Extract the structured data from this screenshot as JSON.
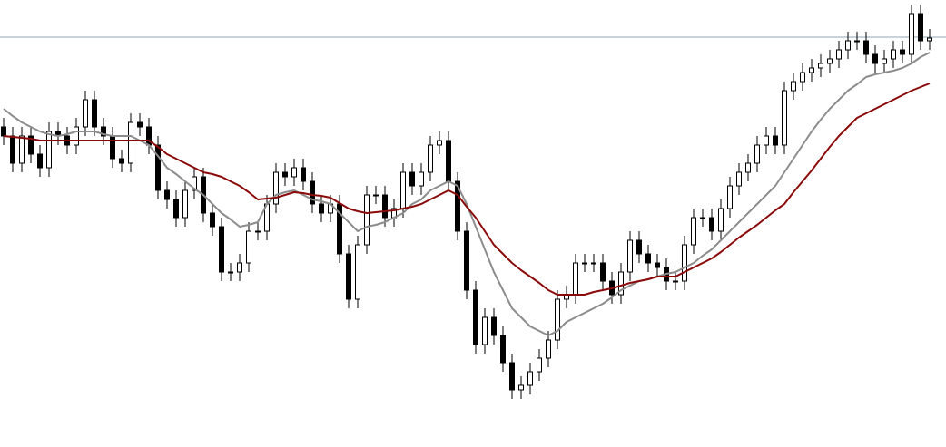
{
  "chart_data": {
    "type": "candlestick",
    "ylim": [
      0,
      493
    ],
    "up_color": "#ffffff",
    "down_color": "#000000",
    "wick_color": "#000000",
    "reference_line": {
      "value": 452,
      "color": "#8fa7b0"
    },
    "open": [
      353,
      343,
      313,
      343,
      323,
      308,
      348,
      343,
      333,
      353,
      383,
      353,
      343,
      318,
      313,
      358,
      353,
      333,
      283,
      273,
      253,
      283,
      298,
      258,
      243,
      193,
      193,
      203,
      238,
      238,
      268,
      303,
      298,
      308,
      293,
      268,
      258,
      268,
      213,
      163,
      223,
      278,
      278,
      253,
      263,
      303,
      288,
      303,
      333,
      338,
      293,
      238,
      173,
      113,
      143,
      123,
      93,
      63,
      68,
      83,
      98,
      118,
      163,
      168,
      203,
      203,
      203,
      183,
      168,
      193,
      228,
      213,
      203,
      198,
      183,
      183,
      223,
      253,
      253,
      238,
      263,
      288,
      303,
      313,
      333,
      343,
      333,
      393,
      403,
      413,
      418,
      423,
      428,
      438,
      448,
      448,
      433,
      423,
      428,
      438,
      433,
      478,
      448
    ],
    "high": [
      363,
      353,
      353,
      353,
      333,
      358,
      358,
      353,
      363,
      393,
      393,
      363,
      353,
      328,
      368,
      368,
      363,
      343,
      293,
      283,
      293,
      308,
      308,
      268,
      253,
      203,
      213,
      248,
      248,
      278,
      313,
      313,
      318,
      318,
      303,
      278,
      278,
      278,
      223,
      233,
      288,
      288,
      288,
      273,
      313,
      313,
      313,
      343,
      348,
      348,
      303,
      248,
      183,
      153,
      153,
      133,
      103,
      78,
      93,
      108,
      128,
      173,
      178,
      213,
      213,
      213,
      213,
      193,
      203,
      238,
      238,
      223,
      213,
      208,
      193,
      233,
      263,
      263,
      263,
      273,
      298,
      313,
      323,
      343,
      353,
      353,
      403,
      413,
      423,
      428,
      433,
      438,
      448,
      458,
      458,
      458,
      443,
      438,
      448,
      448,
      488,
      488,
      461
    ],
    "low": [
      333,
      303,
      303,
      313,
      298,
      298,
      333,
      323,
      323,
      343,
      343,
      333,
      308,
      303,
      303,
      343,
      323,
      273,
      263,
      243,
      243,
      273,
      248,
      233,
      183,
      183,
      183,
      193,
      228,
      228,
      258,
      288,
      288,
      283,
      258,
      248,
      248,
      203,
      153,
      153,
      213,
      268,
      243,
      243,
      253,
      278,
      278,
      293,
      323,
      283,
      228,
      163,
      103,
      103,
      113,
      83,
      53,
      53,
      58,
      73,
      88,
      108,
      153,
      158,
      193,
      193,
      173,
      158,
      158,
      183,
      203,
      193,
      188,
      173,
      173,
      173,
      213,
      243,
      228,
      228,
      253,
      278,
      293,
      303,
      323,
      323,
      323,
      383,
      393,
      403,
      408,
      413,
      418,
      428,
      438,
      423,
      413,
      413,
      418,
      423,
      423,
      438,
      438
    ],
    "close": [
      343,
      313,
      343,
      323,
      308,
      348,
      343,
      333,
      353,
      383,
      353,
      343,
      318,
      313,
      358,
      353,
      333,
      283,
      273,
      253,
      283,
      298,
      258,
      243,
      193,
      193,
      203,
      238,
      238,
      268,
      303,
      298,
      308,
      293,
      268,
      258,
      268,
      213,
      163,
      223,
      278,
      278,
      253,
      263,
      303,
      288,
      303,
      333,
      338,
      293,
      238,
      173,
      113,
      143,
      123,
      93,
      63,
      68,
      83,
      98,
      118,
      163,
      168,
      203,
      203,
      203,
      183,
      168,
      193,
      228,
      213,
      203,
      198,
      183,
      183,
      223,
      253,
      253,
      238,
      263,
      288,
      303,
      313,
      333,
      343,
      333,
      393,
      403,
      413,
      418,
      423,
      428,
      438,
      448,
      448,
      433,
      423,
      428,
      438,
      433,
      478,
      448,
      451
    ],
    "series": [
      {
        "color": "#8c8c8c",
        "values": [
          373,
          365,
          358,
          353,
          348,
          345,
          343,
          345,
          348,
          348,
          348,
          345,
          343,
          343,
          343,
          338,
          333,
          321,
          308,
          301,
          293,
          285,
          278,
          268,
          258,
          251,
          243,
          245,
          248,
          268,
          278,
          281,
          283,
          278,
          273,
          271,
          268,
          258,
          248,
          238,
          243,
          245,
          248,
          253,
          258,
          268,
          273,
          283,
          288,
          293,
          288,
          268,
          243,
          218,
          193,
          173,
          153,
          143,
          133,
          128,
          123,
          128,
          138,
          143,
          148,
          153,
          158,
          165,
          173,
          178,
          183,
          185,
          188,
          191,
          193,
          198,
          203,
          211,
          218,
          228,
          238,
          248,
          258,
          268,
          278,
          288,
          303,
          318,
          333,
          348,
          361,
          373,
          383,
          393,
          400,
          408,
          411,
          413,
          415,
          418,
          423,
          430,
          435
        ]
      },
      {
        "color": "#8b0a0a",
        "values": [
          343,
          342,
          341,
          340,
          338,
          338,
          338,
          338,
          338,
          338,
          338,
          338,
          338,
          338,
          338,
          338,
          338,
          331,
          323,
          318,
          313,
          308,
          303,
          301,
          298,
          293,
          288,
          281,
          273,
          274,
          275,
          278,
          281,
          280,
          278,
          277,
          275,
          269,
          263,
          260,
          258,
          259,
          260,
          261,
          263,
          265,
          268,
          273,
          278,
          283,
          278,
          265,
          253,
          238,
          223,
          213,
          203,
          195,
          188,
          181,
          173,
          168,
          168,
          168,
          168,
          171,
          173,
          175,
          178,
          181,
          183,
          185,
          188,
          188,
          188,
          193,
          198,
          203,
          208,
          215,
          223,
          231,
          238,
          245,
          253,
          261,
          268,
          281,
          293,
          305,
          318,
          331,
          343,
          353,
          363,
          368,
          373,
          378,
          383,
          388,
          393,
          397,
          401
        ]
      }
    ]
  }
}
